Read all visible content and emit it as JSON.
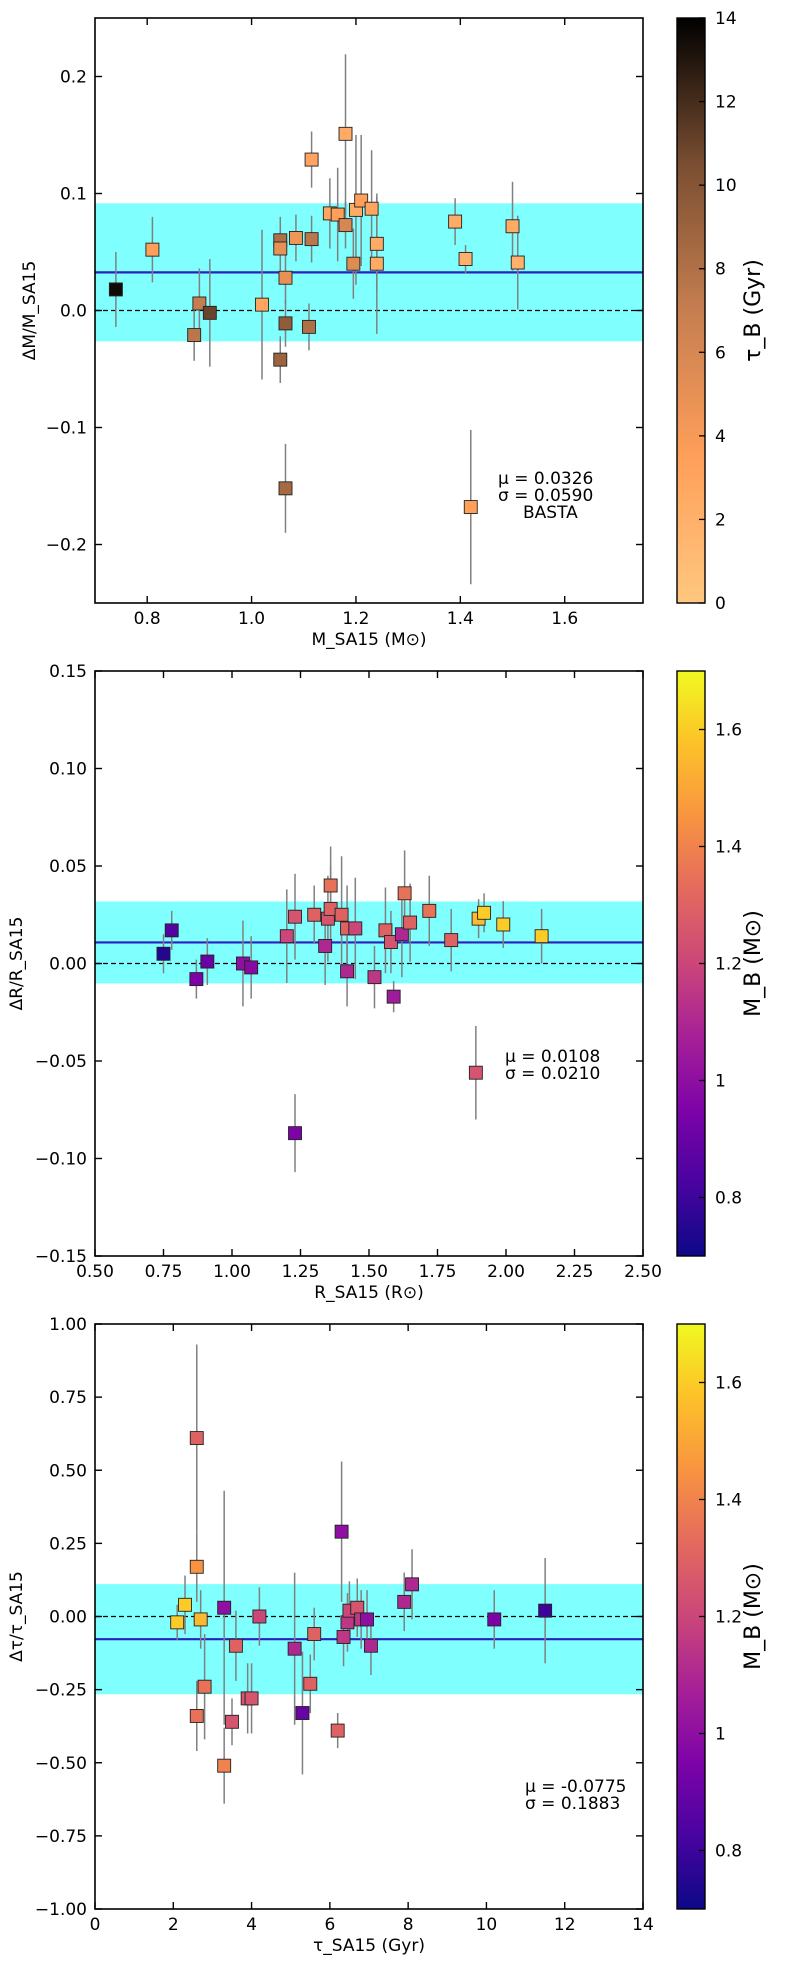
{
  "chart_data": [
    {
      "type": "scatter",
      "xlabel": "M_SA15 (M⊙)",
      "ylabel": "ΔM/M_SA15",
      "xlim": [
        0.7,
        1.75
      ],
      "ylim": [
        -0.25,
        0.25
      ],
      "xticks": [
        0.8,
        1.0,
        1.2,
        1.4,
        1.6
      ],
      "xtick_labels": [
        "0.8",
        "1.0",
        "1.2",
        "1.4",
        "1.6"
      ],
      "yticks": [
        -0.2,
        -0.1,
        0.0,
        0.1,
        0.2
      ],
      "ytick_labels": [
        "−0.2",
        "−0.1",
        "0.0",
        "0.1",
        "0.2"
      ],
      "mean_line": 0.0326,
      "band": [
        -0.0264,
        0.0916
      ],
      "annotations": [
        "μ = 0.0326",
        "σ = 0.0590",
        "BASTA"
      ],
      "colorbar": {
        "label": "τ_B (Gyr)",
        "colormap": "copper_r",
        "range": [
          0,
          14
        ],
        "ticks": [
          0,
          2,
          4,
          6,
          8,
          10,
          12,
          14
        ]
      },
      "points": [
        {
          "x": 0.74,
          "y": 0.018,
          "err": 0.032,
          "c": 13.5
        },
        {
          "x": 0.81,
          "y": 0.052,
          "err": 0.028,
          "c": 3.5
        },
        {
          "x": 0.89,
          "y": -0.021,
          "err": 0.022,
          "c": 7.5
        },
        {
          "x": 0.9,
          "y": 0.006,
          "err": 0.03,
          "c": 7.0
        },
        {
          "x": 0.92,
          "y": -0.002,
          "err": 0.046,
          "c": 11.0
        },
        {
          "x": 1.02,
          "y": 0.005,
          "err": 0.064,
          "c": 3.0
        },
        {
          "x": 1.055,
          "y": -0.042,
          "err": 0.02,
          "c": 9.0
        },
        {
          "x": 1.055,
          "y": 0.06,
          "err": 0.02,
          "c": 8.0
        },
        {
          "x": 1.055,
          "y": 0.053,
          "err": 0.02,
          "c": 5.0
        },
        {
          "x": 1.065,
          "y": -0.011,
          "err": 0.02,
          "c": 9.5
        },
        {
          "x": 1.065,
          "y": 0.028,
          "err": 0.022,
          "c": 5.0
        },
        {
          "x": 1.065,
          "y": -0.152,
          "err": 0.038,
          "c": 8.5
        },
        {
          "x": 1.085,
          "y": 0.062,
          "err": 0.02,
          "c": 4.5
        },
        {
          "x": 1.11,
          "y": -0.014,
          "err": 0.02,
          "c": 8.0
        },
        {
          "x": 1.115,
          "y": 0.129,
          "err": 0.024,
          "c": 3.0
        },
        {
          "x": 1.115,
          "y": 0.061,
          "err": 0.02,
          "c": 7.5
        },
        {
          "x": 1.15,
          "y": 0.083,
          "err": 0.03,
          "c": 3.0
        },
        {
          "x": 1.165,
          "y": 0.082,
          "err": 0.04,
          "c": 3.5
        },
        {
          "x": 1.18,
          "y": 0.151,
          "err": 0.068,
          "c": 2.5
        },
        {
          "x": 1.18,
          "y": 0.073,
          "err": 0.02,
          "c": 6.0
        },
        {
          "x": 1.195,
          "y": 0.04,
          "err": 0.03,
          "c": 5.5
        },
        {
          "x": 1.2,
          "y": 0.086,
          "err": 0.064,
          "c": 2.5
        },
        {
          "x": 1.21,
          "y": 0.094,
          "err": 0.056,
          "c": 3.5
        },
        {
          "x": 1.23,
          "y": 0.087,
          "err": 0.05,
          "c": 3.0
        },
        {
          "x": 1.24,
          "y": 0.057,
          "err": 0.04,
          "c": 2.5
        },
        {
          "x": 1.24,
          "y": 0.04,
          "err": 0.06,
          "c": 2.5
        },
        {
          "x": 1.39,
          "y": 0.076,
          "err": 0.02,
          "c": 2.5
        },
        {
          "x": 1.41,
          "y": 0.044,
          "err": 0.012,
          "c": 2.0
        },
        {
          "x": 1.42,
          "y": -0.168,
          "err": 0.066,
          "c": 3.5
        },
        {
          "x": 1.5,
          "y": 0.072,
          "err": 0.038,
          "c": 2.5
        },
        {
          "x": 1.51,
          "y": 0.041,
          "err": 0.04,
          "c": 2.0
        }
      ]
    },
    {
      "type": "scatter",
      "xlabel": "R_SA15 (R⊙)",
      "ylabel": "ΔR/R_SA15",
      "xlim": [
        0.5,
        2.5
      ],
      "ylim": [
        -0.15,
        0.15
      ],
      "xticks": [
        0.5,
        0.75,
        1.0,
        1.25,
        1.5,
        1.75,
        2.0,
        2.25,
        2.5
      ],
      "xtick_labels": [
        "0.50",
        "0.75",
        "1.00",
        "1.25",
        "1.50",
        "1.75",
        "2.00",
        "2.25",
        "2.50"
      ],
      "yticks": [
        -0.15,
        -0.1,
        -0.05,
        0.0,
        0.05,
        0.1,
        0.15
      ],
      "ytick_labels": [
        "−0.15",
        "−0.10",
        "−0.05",
        "0.00",
        "0.05",
        "0.10",
        "0.15"
      ],
      "mean_line": 0.0108,
      "band": [
        -0.0102,
        0.0318
      ],
      "annotations": [
        "μ = 0.0108",
        "σ = 0.0210"
      ],
      "colorbar": {
        "label": "M_B (M⊙)",
        "colormap": "plasma",
        "range": [
          0.7,
          1.7
        ],
        "ticks": [
          0.8,
          1.0,
          1.2,
          1.4,
          1.6
        ]
      },
      "points": [
        {
          "x": 0.75,
          "y": 0.005,
          "err": 0.01,
          "c": 0.75
        },
        {
          "x": 0.78,
          "y": 0.017,
          "err": 0.01,
          "c": 0.85
        },
        {
          "x": 0.87,
          "y": -0.008,
          "err": 0.01,
          "c": 0.95
        },
        {
          "x": 0.91,
          "y": 0.001,
          "err": 0.012,
          "c": 0.9
        },
        {
          "x": 1.04,
          "y": 0.0,
          "err": 0.022,
          "c": 1.0
        },
        {
          "x": 1.07,
          "y": -0.002,
          "err": 0.016,
          "c": 0.98
        },
        {
          "x": 1.2,
          "y": 0.014,
          "err": 0.024,
          "c": 1.2
        },
        {
          "x": 1.23,
          "y": 0.024,
          "err": 0.022,
          "c": 1.25
        },
        {
          "x": 1.23,
          "y": -0.087,
          "err": 0.02,
          "c": 0.95
        },
        {
          "x": 1.3,
          "y": 0.025,
          "err": 0.015,
          "c": 1.3
        },
        {
          "x": 1.34,
          "y": 0.009,
          "err": 0.02,
          "c": 1.1
        },
        {
          "x": 1.35,
          "y": 0.023,
          "err": 0.022,
          "c": 1.25
        },
        {
          "x": 1.36,
          "y": 0.04,
          "err": 0.02,
          "c": 1.35
        },
        {
          "x": 1.36,
          "y": 0.028,
          "err": 0.022,
          "c": 1.3
        },
        {
          "x": 1.4,
          "y": 0.025,
          "err": 0.03,
          "c": 1.3
        },
        {
          "x": 1.42,
          "y": -0.004,
          "err": 0.018,
          "c": 1.1
        },
        {
          "x": 1.42,
          "y": 0.018,
          "err": 0.022,
          "c": 1.3
        },
        {
          "x": 1.45,
          "y": 0.018,
          "err": 0.026,
          "c": 1.2
        },
        {
          "x": 1.52,
          "y": -0.007,
          "err": 0.016,
          "c": 1.15
        },
        {
          "x": 1.56,
          "y": 0.017,
          "err": 0.022,
          "c": 1.3
        },
        {
          "x": 1.58,
          "y": 0.011,
          "err": 0.016,
          "c": 1.25
        },
        {
          "x": 1.59,
          "y": -0.017,
          "err": 0.008,
          "c": 1.05
        },
        {
          "x": 1.62,
          "y": 0.015,
          "err": 0.022,
          "c": 1.1
        },
        {
          "x": 1.63,
          "y": 0.036,
          "err": 0.022,
          "c": 1.35
        },
        {
          "x": 1.65,
          "y": 0.021,
          "err": 0.02,
          "c": 1.3
        },
        {
          "x": 1.72,
          "y": 0.027,
          "err": 0.018,
          "c": 1.35
        },
        {
          "x": 1.8,
          "y": 0.012,
          "err": 0.016,
          "c": 1.3
        },
        {
          "x": 1.89,
          "y": -0.056,
          "err": 0.024,
          "c": 1.25
        },
        {
          "x": 1.9,
          "y": 0.023,
          "err": 0.01,
          "c": 1.55
        },
        {
          "x": 1.92,
          "y": 0.026,
          "err": 0.01,
          "c": 1.6
        },
        {
          "x": 1.99,
          "y": 0.02,
          "err": 0.012,
          "c": 1.6
        },
        {
          "x": 2.13,
          "y": 0.014,
          "err": 0.014,
          "c": 1.6
        }
      ]
    },
    {
      "type": "scatter",
      "xlabel": "τ_SA15 (Gyr)",
      "ylabel": "Δτ/τ_SA15",
      "xlim": [
        0,
        14
      ],
      "ylim": [
        -1.0,
        1.0
      ],
      "xticks": [
        0,
        2,
        4,
        6,
        8,
        10,
        12,
        14
      ],
      "xtick_labels": [
        "0",
        "2",
        "4",
        "6",
        "8",
        "10",
        "12",
        "14"
      ],
      "yticks": [
        -1.0,
        -0.75,
        -0.5,
        -0.25,
        0.0,
        0.25,
        0.5,
        0.75,
        1.0
      ],
      "ytick_labels": [
        "−1.00",
        "−0.75",
        "−0.50",
        "−0.25",
        "0.00",
        "0.25",
        "0.50",
        "0.75",
        "1.00"
      ],
      "mean_line": -0.0775,
      "band": [
        -0.2658,
        0.1108
      ],
      "annotations": [
        "μ = -0.0775",
        "σ = 0.1883"
      ],
      "colorbar": {
        "label": "M_B (M⊙)",
        "colormap": "plasma",
        "range": [
          0.7,
          1.7
        ],
        "ticks": [
          0.8,
          1.0,
          1.2,
          1.4,
          1.6
        ]
      },
      "points": [
        {
          "x": 2.1,
          "y": -0.02,
          "err": 0.06,
          "c": 1.6
        },
        {
          "x": 2.3,
          "y": 0.04,
          "err": 0.1,
          "c": 1.6
        },
        {
          "x": 2.6,
          "y": 0.61,
          "err": 0.32,
          "c": 1.3
        },
        {
          "x": 2.6,
          "y": 0.17,
          "err": 0.12,
          "c": 1.45
        },
        {
          "x": 2.6,
          "y": -0.34,
          "err": 0.12,
          "c": 1.35
        },
        {
          "x": 2.7,
          "y": -0.01,
          "err": 0.1,
          "c": 1.55
        },
        {
          "x": 2.8,
          "y": -0.24,
          "err": 0.18,
          "c": 1.35
        },
        {
          "x": 3.3,
          "y": 0.03,
          "err": 0.4,
          "c": 1.0
        },
        {
          "x": 3.3,
          "y": -0.51,
          "err": 0.13,
          "c": 1.4
        },
        {
          "x": 3.5,
          "y": -0.36,
          "err": 0.08,
          "c": 1.25
        },
        {
          "x": 3.6,
          "y": -0.1,
          "err": 0.12,
          "c": 1.3
        },
        {
          "x": 3.9,
          "y": -0.28,
          "err": 0.12,
          "c": 1.25
        },
        {
          "x": 4.0,
          "y": -0.28,
          "err": 0.12,
          "c": 1.25
        },
        {
          "x": 4.2,
          "y": 0.0,
          "err": 0.1,
          "c": 1.2
        },
        {
          "x": 5.1,
          "y": -0.11,
          "err": 0.26,
          "c": 1.1
        },
        {
          "x": 5.3,
          "y": -0.33,
          "err": 0.21,
          "c": 0.9
        },
        {
          "x": 5.5,
          "y": -0.23,
          "err": 0.1,
          "c": 1.3
        },
        {
          "x": 5.6,
          "y": -0.06,
          "err": 0.09,
          "c": 1.3
        },
        {
          "x": 6.2,
          "y": -0.39,
          "err": 0.06,
          "c": 1.3
        },
        {
          "x": 6.3,
          "y": 0.29,
          "err": 0.24,
          "c": 1.0
        },
        {
          "x": 6.35,
          "y": -0.07,
          "err": 0.1,
          "c": 1.15
        },
        {
          "x": 6.45,
          "y": -0.02,
          "err": 0.1,
          "c": 1.15
        },
        {
          "x": 6.5,
          "y": 0.02,
          "err": 0.1,
          "c": 1.2
        },
        {
          "x": 6.7,
          "y": 0.03,
          "err": 0.1,
          "c": 1.25
        },
        {
          "x": 6.8,
          "y": -0.01,
          "err": 0.1,
          "c": 1.15
        },
        {
          "x": 6.95,
          "y": -0.01,
          "err": 0.1,
          "c": 1.0
        },
        {
          "x": 7.05,
          "y": -0.1,
          "err": 0.1,
          "c": 1.1
        },
        {
          "x": 7.9,
          "y": 0.05,
          "err": 0.1,
          "c": 1.1
        },
        {
          "x": 8.1,
          "y": 0.11,
          "err": 0.12,
          "c": 1.1
        },
        {
          "x": 10.2,
          "y": -0.01,
          "err": 0.1,
          "c": 0.95
        },
        {
          "x": 11.5,
          "y": 0.02,
          "err": 0.18,
          "c": 0.8
        }
      ]
    }
  ]
}
